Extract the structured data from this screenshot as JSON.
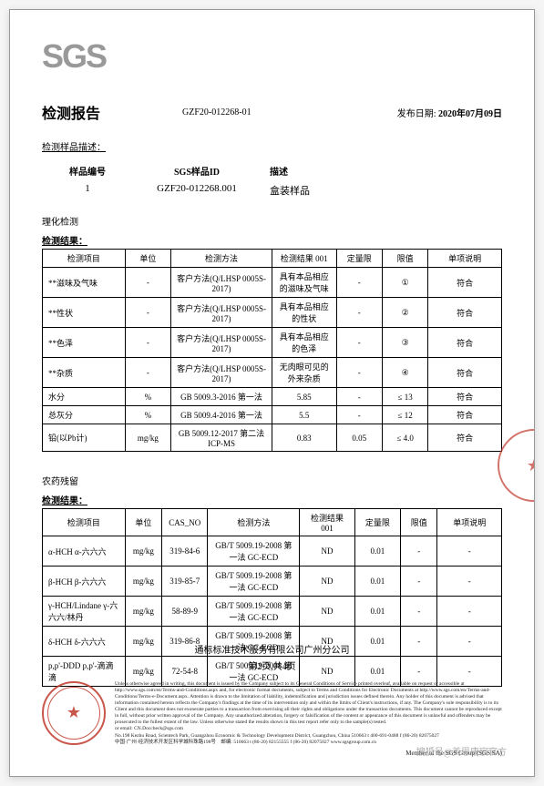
{
  "logo": "SGS",
  "header": {
    "title": "检测报告",
    "report_no": "GZF20-012268-01",
    "date_label": "发布日期:",
    "date_value": "2020年07月09日"
  },
  "sample_desc_label": "检测样品描述：",
  "sample_head": {
    "c1": "样品编号",
    "c2": "SGS样品ID",
    "c3": "描述"
  },
  "sample_row": {
    "c1": "1",
    "c2": "GZF20-012268.001",
    "c3": "盒装样品"
  },
  "section1": {
    "title": "理化检测",
    "result": "检测结果："
  },
  "t1": {
    "head": [
      "检测项目",
      "单位",
      "检测方法",
      "检测结果 001",
      "定量限",
      "限值",
      "单项说明"
    ],
    "rows": [
      [
        "**滋味及气味",
        "-",
        "客户方法(Q/LHSP 0005S-2017)",
        "具有本品相应的滋味及气味",
        "-",
        "①",
        "符合"
      ],
      [
        "**性状",
        "-",
        "客户方法(Q/LHSP 0005S-2017)",
        "具有本品相应的性状",
        "-",
        "②",
        "符合"
      ],
      [
        "**色泽",
        "-",
        "客户方法(Q/LHSP 0005S-2017)",
        "具有本品相应的色泽",
        "-",
        "③",
        "符合"
      ],
      [
        "**杂质",
        "-",
        "客户方法(Q/LHSP 0005S-2017)",
        "无肉眼可见的外来杂质",
        "-",
        "④",
        "符合"
      ],
      [
        "水分",
        "%",
        "GB 5009.3-2016 第一法",
        "5.85",
        "-",
        "≤ 13",
        "符合"
      ],
      [
        "总灰分",
        "%",
        "GB 5009.4-2016 第一法",
        "5.5",
        "-",
        "≤ 12",
        "符合"
      ],
      [
        "铅(以Pb计)",
        "mg/kg",
        "GB 5009.12-2017 第二法 ICP-MS",
        "0.83",
        "0.05",
        "≤ 4.0",
        "符合"
      ]
    ]
  },
  "section2": {
    "title": "农药残留",
    "result": "检测结果："
  },
  "t2": {
    "head": [
      "检测项目",
      "单位",
      "CAS_NO",
      "检测方法",
      "检测结果 001",
      "定量限",
      "限值",
      "单项说明"
    ],
    "rows": [
      [
        "α-HCH α-六六六",
        "mg/kg",
        "319-84-6",
        "GB/T 5009.19-2008 第一法 GC-ECD",
        "ND",
        "0.01",
        "-",
        "-"
      ],
      [
        "β-HCH β-六六六",
        "mg/kg",
        "319-85-7",
        "GB/T 5009.19-2008 第一法 GC-ECD",
        "ND",
        "0.01",
        "-",
        "-"
      ],
      [
        "γ-HCH/Lindane γ-六六六/林丹",
        "mg/kg",
        "58-89-9",
        "GB/T 5009.19-2008 第一法 GC-ECD",
        "ND",
        "0.01",
        "-",
        "-"
      ],
      [
        "δ-HCH δ-六六六",
        "mg/kg",
        "319-86-8",
        "GB/T 5009.19-2008 第一法 GC-ECD",
        "ND",
        "0.01",
        "-",
        "-"
      ],
      [
        "p,p'-DDD p,p'-滴滴滴",
        "mg/kg",
        "72-54-8",
        "GB/T 5009.19-2008 第一法 GC-ECD",
        "ND",
        "0.01",
        "-",
        "-"
      ]
    ]
  },
  "footer": {
    "company": "通标标准技术服务有限公司广州分公司",
    "page": "第2页,共4页",
    "disclaimer": "Unless otherwise agreed in writing, this document is issued by the Company subject to its General Conditions of Service printed overleaf, available on request or accessible at http://www.sgs.com/en/Terms-and-Conditions.aspx and, for electronic format documents, subject to Terms and Conditions for Electronic Documents at http://www.sgs.com/en/Terms-and-Conditions/Terms-e-Document.aspx. Attention is drawn to the limitation of liability, indemnification and jurisdiction issues defined therein. Any holder of this document is advised that information contained hereon reflects the Company's findings at the time of its intervention only and within the limits of Client's instructions, if any. The Company's sole responsibility is to its Client and this document does not exonerate parties to a transaction from exercising all their rights and obligations under the transaction documents. This document cannot be reproduced except in full, without prior written approval of the Company. Any unauthorized alteration, forgery or falsification of the content or appearance of this document is unlawful and offenders may be prosecuted to the fullest extent of the law. Unless otherwise stated the results shown in this test report refer only to the sample(s) tested.",
    "email": "or email: CN.Doccheck@sgs.com",
    "addr_cn": "中国·广州·经济技术开发区科学城科珠路198号",
    "addr_zip": "邮编: 510663  t (86-20) 82155555  f (86-20) 82075027  www.sgsgroup.com.cn",
    "addr_en": "No.198 Kezhu Road, Scientech Park, Guangzhou Economic & Technology Development District, Guangzhou, China 510663  t 400-691-0488  f (86-20) 82075027",
    "copyright": "Member of the SGS Group (SGS SA)"
  },
  "watermark": "搜狐号@美思康宸官方"
}
